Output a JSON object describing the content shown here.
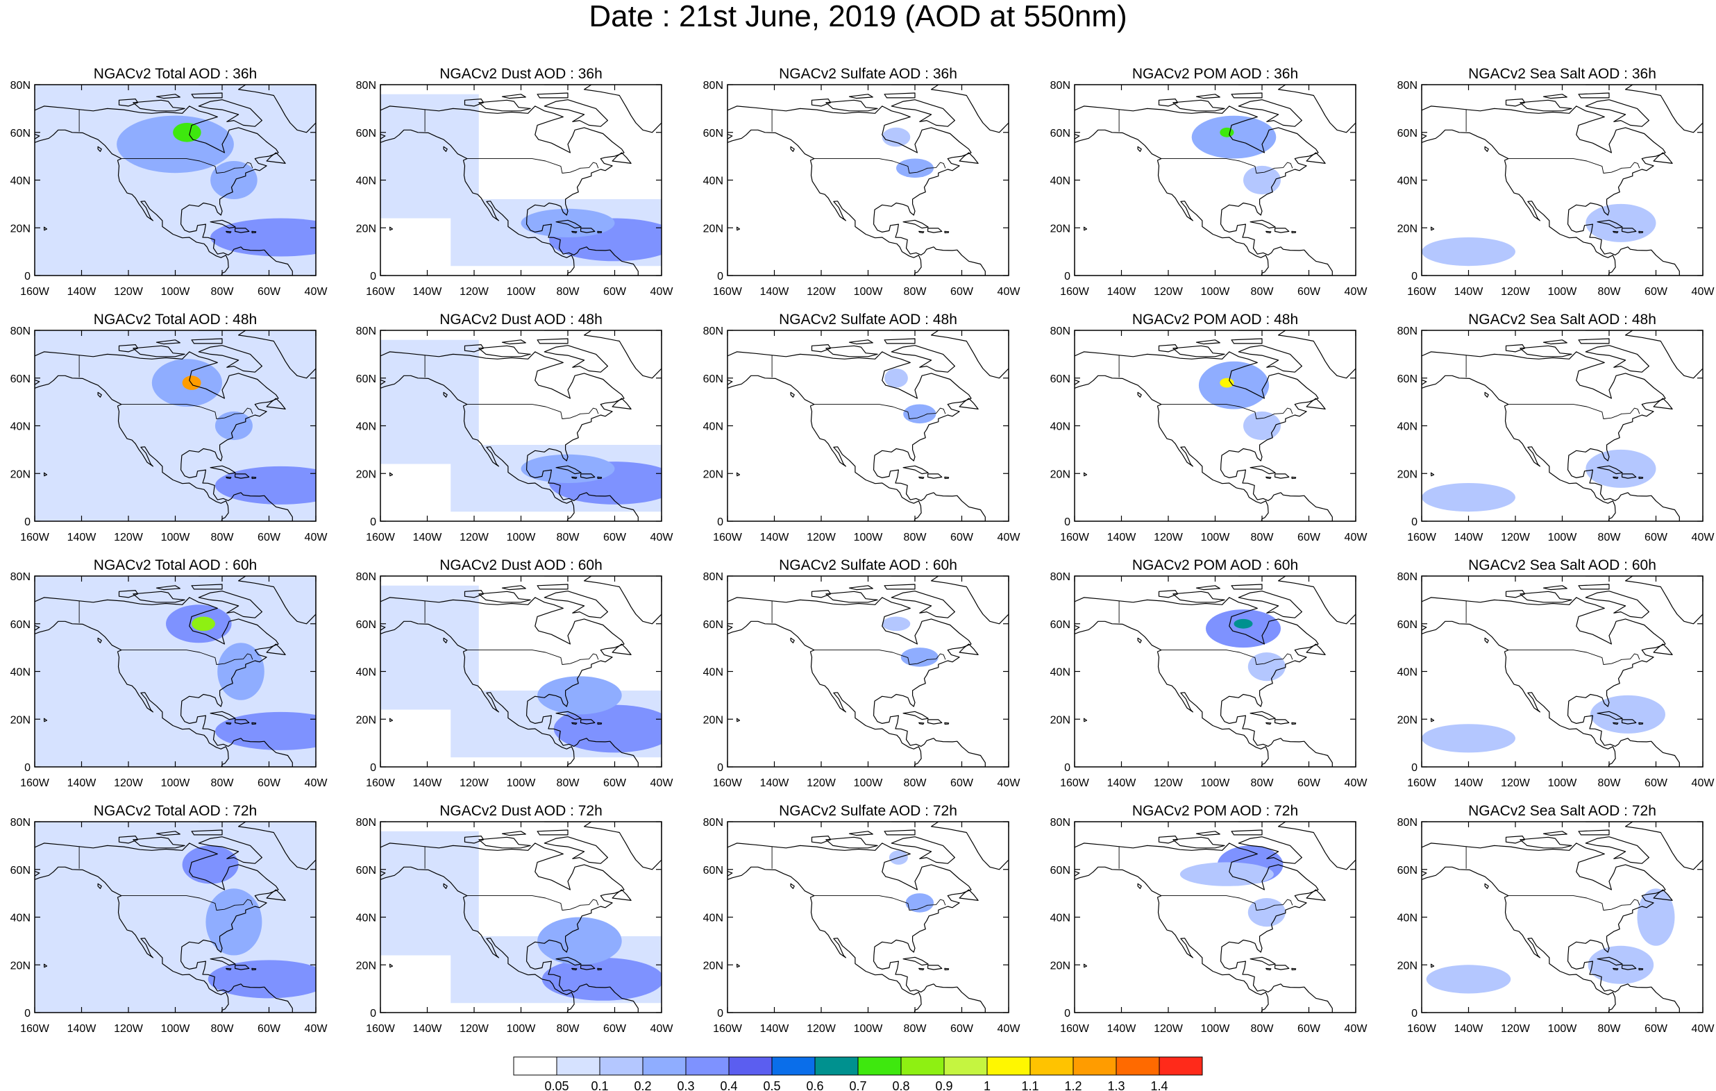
{
  "title": "Date : 21st June, 2019 (AOD at 550nm)",
  "map": {
    "lon_range": [
      -160,
      -40
    ],
    "lat_range": [
      0,
      80
    ],
    "x_ticks": [
      "160W",
      "140W",
      "120W",
      "100W",
      "80W",
      "60W",
      "40W"
    ],
    "y_ticks": [
      "0",
      "20N",
      "40N",
      "60N",
      "80N"
    ],
    "x_tick_values": [
      -160,
      -140,
      -120,
      -100,
      -80,
      -60,
      -40
    ],
    "y_tick_values": [
      0,
      20,
      40,
      60,
      80
    ]
  },
  "columns": [
    {
      "key": "total",
      "name": "Total"
    },
    {
      "key": "dust",
      "name": "Dust"
    },
    {
      "key": "sulfate",
      "name": "Sulfate"
    },
    {
      "key": "pom",
      "name": "POM"
    },
    {
      "key": "seasalt",
      "name": "Sea Salt"
    }
  ],
  "forecast_hours": [
    "36h",
    "48h",
    "60h",
    "72h"
  ],
  "panels": [
    [
      "NGACv2 Total AOD : 36h",
      "NGACv2 Dust AOD : 36h",
      "NGACv2 Sulfate AOD : 36h",
      "NGACv2 POM AOD : 36h",
      "NGACv2 Sea Salt AOD : 36h"
    ],
    [
      "NGACv2 Total AOD : 48h",
      "NGACv2 Dust AOD : 48h",
      "NGACv2 Sulfate AOD : 48h",
      "NGACv2 POM AOD : 48h",
      "NGACv2 Sea Salt AOD : 48h"
    ],
    [
      "NGACv2 Total AOD : 60h",
      "NGACv2 Dust AOD : 60h",
      "NGACv2 Sulfate AOD : 60h",
      "NGACv2 POM AOD : 60h",
      "NGACv2 Sea Salt AOD : 60h"
    ],
    [
      "NGACv2 Total AOD : 72h",
      "NGACv2 Dust AOD : 72h",
      "NGACv2 Sulfate AOD : 72h",
      "NGACv2 POM AOD : 72h",
      "NGACv2 Sea Salt  AOD : 72h"
    ]
  ],
  "colorbar": {
    "labels": [
      "0.05",
      "0.1",
      "0.2",
      "0.3",
      "0.4",
      "0.5",
      "0.6",
      "0.7",
      "0.8",
      "0.9",
      "1",
      "1.1",
      "1.2",
      "1.3",
      "1.4"
    ],
    "colors": [
      "#ffffff",
      "#d6e2ff",
      "#b4c7ff",
      "#8fadff",
      "#7e92ff",
      "#5b5ef0",
      "#0a6eea",
      "#00918f",
      "#3ee80e",
      "#8ef012",
      "#c5f540",
      "#fff700",
      "#ffc300",
      "#ff9c00",
      "#ff6a00",
      "#ff2a1a"
    ]
  },
  "fields": {
    "total": [
      [
        {
          "lon": -100,
          "lat": 55,
          "rlon": 25,
          "rlat": 12,
          "v": 0.22
        },
        {
          "lon": -95,
          "lat": 60,
          "rlon": 6,
          "rlat": 4,
          "v": 0.7
        },
        {
          "lon": -55,
          "lat": 16,
          "rlon": 30,
          "rlat": 8,
          "v": 0.38
        },
        {
          "lon": -75,
          "lat": 40,
          "rlon": 10,
          "rlat": 8,
          "v": 0.25
        }
      ],
      [
        {
          "lon": -95,
          "lat": 58,
          "rlon": 15,
          "rlat": 10,
          "v": 0.28
        },
        {
          "lon": -93,
          "lat": 58,
          "rlon": 4,
          "rlat": 3,
          "v": 1.25
        },
        {
          "lon": -55,
          "lat": 15,
          "rlon": 28,
          "rlat": 8,
          "v": 0.38
        },
        {
          "lon": -75,
          "lat": 40,
          "rlon": 8,
          "rlat": 6,
          "v": 0.25
        }
      ],
      [
        {
          "lon": -90,
          "lat": 60,
          "rlon": 14,
          "rlat": 8,
          "v": 0.3
        },
        {
          "lon": -88,
          "lat": 60,
          "rlon": 5,
          "rlat": 3,
          "v": 0.85
        },
        {
          "lon": -55,
          "lat": 15,
          "rlon": 28,
          "rlat": 8,
          "v": 0.38
        },
        {
          "lon": -72,
          "lat": 40,
          "rlon": 10,
          "rlat": 12,
          "v": 0.25
        }
      ],
      [
        {
          "lon": -85,
          "lat": 62,
          "rlon": 12,
          "rlat": 8,
          "v": 0.32
        },
        {
          "lon": -60,
          "lat": 14,
          "rlon": 26,
          "rlat": 8,
          "v": 0.38
        },
        {
          "lon": -75,
          "lat": 38,
          "rlon": 12,
          "rlat": 14,
          "v": 0.25
        }
      ]
    ],
    "dust": [
      [
        {
          "lon": -60,
          "lat": 15,
          "rlon": 28,
          "rlat": 9,
          "v": 0.36
        },
        {
          "lon": -80,
          "lat": 22,
          "rlon": 20,
          "rlat": 6,
          "v": 0.2
        }
      ],
      [
        {
          "lon": -60,
          "lat": 16,
          "rlon": 28,
          "rlat": 9,
          "v": 0.36
        },
        {
          "lon": -80,
          "lat": 22,
          "rlon": 20,
          "rlat": 6,
          "v": 0.2
        }
      ],
      [
        {
          "lon": -60,
          "lat": 16,
          "rlon": 26,
          "rlat": 10,
          "v": 0.36
        },
        {
          "lon": -75,
          "lat": 30,
          "rlon": 18,
          "rlat": 8,
          "v": 0.2
        }
      ],
      [
        {
          "lon": -65,
          "lat": 14,
          "rlon": 26,
          "rlat": 9,
          "v": 0.36
        },
        {
          "lon": -75,
          "lat": 30,
          "rlon": 18,
          "rlat": 10,
          "v": 0.22
        }
      ]
    ],
    "sulfate": [
      [
        {
          "lon": -80,
          "lat": 45,
          "rlon": 8,
          "rlat": 4,
          "v": 0.2
        },
        {
          "lon": -88,
          "lat": 58,
          "rlon": 6,
          "rlat": 4,
          "v": 0.1
        }
      ],
      [
        {
          "lon": -78,
          "lat": 45,
          "rlon": 7,
          "rlat": 4,
          "v": 0.2
        },
        {
          "lon": -88,
          "lat": 60,
          "rlon": 5,
          "rlat": 4,
          "v": 0.1
        }
      ],
      [
        {
          "lon": -78,
          "lat": 46,
          "rlon": 8,
          "rlat": 4,
          "v": 0.2
        },
        {
          "lon": -88,
          "lat": 60,
          "rlon": 6,
          "rlat": 3,
          "v": 0.1
        }
      ],
      [
        {
          "lon": -78,
          "lat": 46,
          "rlon": 6,
          "rlat": 4,
          "v": 0.2
        },
        {
          "lon": -87,
          "lat": 65,
          "rlon": 4,
          "rlat": 3,
          "v": 0.1
        }
      ]
    ],
    "pom": [
      [
        {
          "lon": -92,
          "lat": 58,
          "rlon": 18,
          "rlat": 9,
          "v": 0.28
        },
        {
          "lon": -95,
          "lat": 60,
          "rlon": 3,
          "rlat": 2,
          "v": 0.7
        },
        {
          "lon": -80,
          "lat": 40,
          "rlon": 8,
          "rlat": 6,
          "v": 0.12
        }
      ],
      [
        {
          "lon": -92,
          "lat": 57,
          "rlon": 15,
          "rlat": 10,
          "v": 0.28
        },
        {
          "lon": -95,
          "lat": 58,
          "rlon": 3,
          "rlat": 2,
          "v": 1.0
        },
        {
          "lon": -80,
          "lat": 40,
          "rlon": 8,
          "rlat": 6,
          "v": 0.12
        }
      ],
      [
        {
          "lon": -88,
          "lat": 58,
          "rlon": 16,
          "rlat": 8,
          "v": 0.3
        },
        {
          "lon": -88,
          "lat": 60,
          "rlon": 4,
          "rlat": 2,
          "v": 0.65
        },
        {
          "lon": -78,
          "lat": 42,
          "rlon": 8,
          "rlat": 6,
          "v": 0.12
        }
      ],
      [
        {
          "lon": -85,
          "lat": 62,
          "rlon": 14,
          "rlat": 8,
          "v": 0.32
        },
        {
          "lon": -95,
          "lat": 58,
          "rlon": 20,
          "rlat": 5,
          "v": 0.15
        },
        {
          "lon": -78,
          "lat": 42,
          "rlon": 8,
          "rlat": 6,
          "v": 0.12
        }
      ]
    ],
    "seasalt": [
      [
        {
          "lon": -75,
          "lat": 22,
          "rlon": 15,
          "rlat": 8,
          "v": 0.18
        },
        {
          "lon": -140,
          "lat": 10,
          "rlon": 20,
          "rlat": 6,
          "v": 0.1
        }
      ],
      [
        {
          "lon": -75,
          "lat": 22,
          "rlon": 15,
          "rlat": 8,
          "v": 0.18
        },
        {
          "lon": -140,
          "lat": 10,
          "rlon": 20,
          "rlat": 6,
          "v": 0.1
        }
      ],
      [
        {
          "lon": -72,
          "lat": 22,
          "rlon": 16,
          "rlat": 8,
          "v": 0.18
        },
        {
          "lon": -140,
          "lat": 12,
          "rlon": 20,
          "rlat": 6,
          "v": 0.1
        }
      ],
      [
        {
          "lon": -75,
          "lat": 20,
          "rlon": 14,
          "rlat": 8,
          "v": 0.18
        },
        {
          "lon": -140,
          "lat": 14,
          "rlon": 18,
          "rlat": 6,
          "v": 0.1
        },
        {
          "lon": -60,
          "lat": 40,
          "rlon": 8,
          "rlat": 12,
          "v": 0.12
        }
      ]
    ]
  }
}
